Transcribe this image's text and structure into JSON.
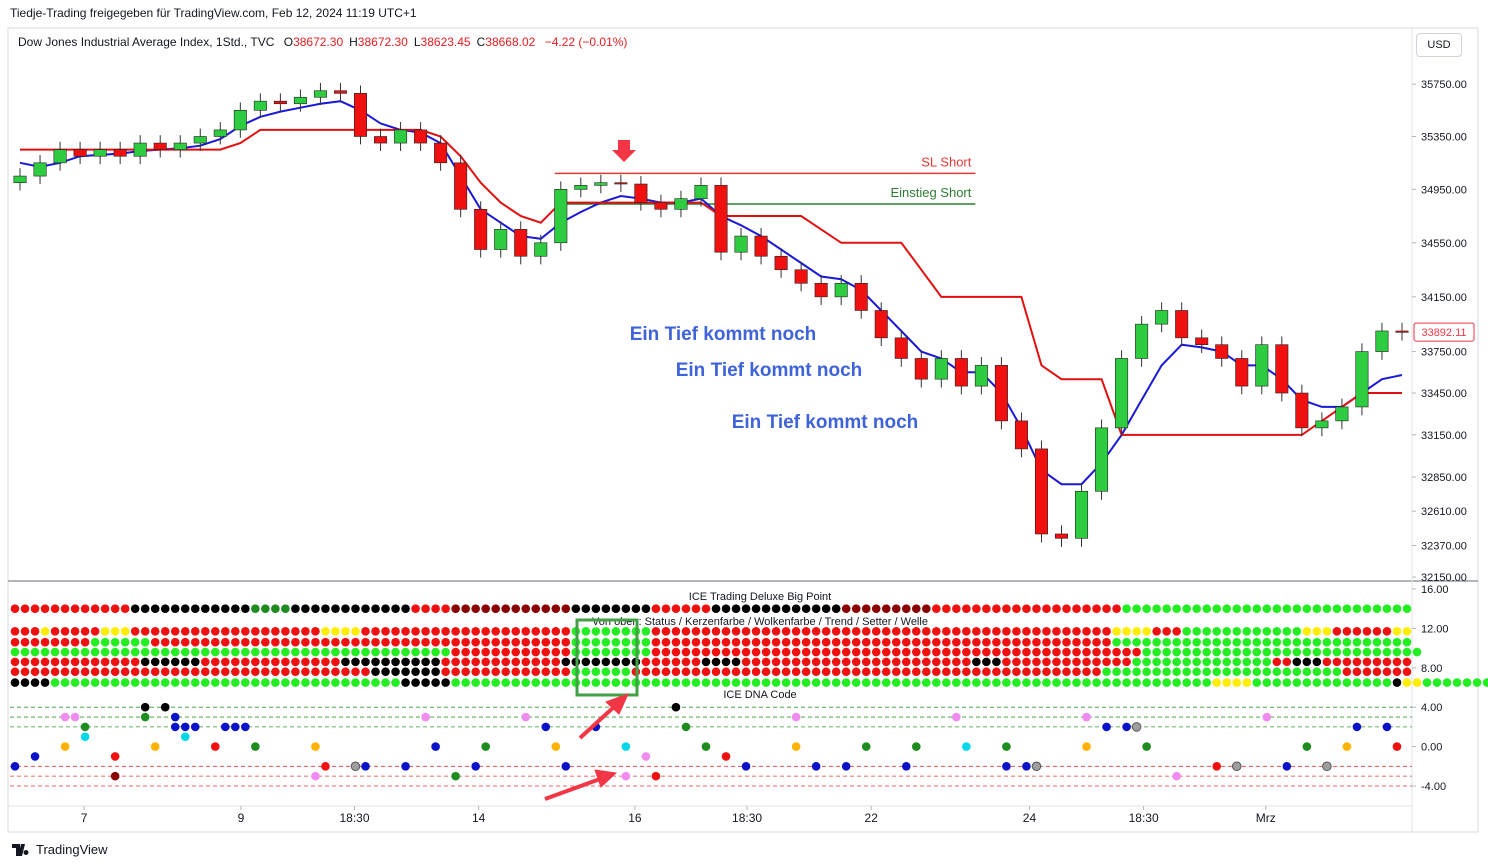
{
  "header": {
    "title": "Tiedje-Trading freigegeben für TradingView.com, Feb 12, 2024 11:19 UTC+1"
  },
  "legend": {
    "symbol": "Dow Jones Industrial Average Index, 1Std., TVC",
    "fields": [
      {
        "key": "O",
        "value": "38672.30"
      },
      {
        "key": "H",
        "value": "38672.30"
      },
      {
        "key": "L",
        "value": "38623.45"
      },
      {
        "key": "C",
        "value": "38668.02"
      }
    ],
    "change": "−4.22 (−0.01%)"
  },
  "currency": "USD",
  "footer": {
    "brand": "TradingView"
  },
  "chart_data": [
    {
      "type": "candlestick",
      "log_scale": true,
      "ylim": [
        32130,
        36170
      ],
      "yticks": [
        {
          "value": 35750,
          "label": "35750.00"
        },
        {
          "value": 35350,
          "label": "35350.00"
        },
        {
          "value": 34950,
          "label": "34950.00"
        },
        {
          "value": 34550,
          "label": "34550.00"
        },
        {
          "value": 34150,
          "label": "34150.00"
        },
        {
          "value": 33750,
          "label": "33750.00"
        },
        {
          "value": 33450,
          "label": "33450.00"
        },
        {
          "value": 33150,
          "label": "33150.00"
        },
        {
          "value": 32850,
          "label": "32850.00"
        },
        {
          "value": 32610,
          "label": "32610.00"
        },
        {
          "value": 32370,
          "label": "32370.00"
        },
        {
          "value": 32150,
          "label": "32150.00"
        }
      ],
      "xlim": [
        -0.5,
        69.5
      ],
      "xticks": [
        {
          "value": 3.2,
          "label": "7"
        },
        {
          "value": 11.03,
          "label": "9"
        },
        {
          "value": 16.7,
          "label": "18:30"
        },
        {
          "value": 22.9,
          "label": "14"
        },
        {
          "value": 30.7,
          "label": "16"
        },
        {
          "value": 36.3,
          "label": "18:30"
        },
        {
          "value": 42.5,
          "label": "22"
        },
        {
          "value": 50.4,
          "label": "24"
        },
        {
          "value": 56.1,
          "label": "18:30"
        },
        {
          "value": 62.2,
          "label": "Mrz"
        }
      ],
      "open": [
        35000,
        35050,
        35150,
        35250,
        35200,
        35250,
        35200,
        35300,
        35250,
        35300,
        35350,
        35400,
        35550,
        35620,
        35600,
        35650,
        35700,
        35680,
        35350,
        35300,
        35400,
        35300,
        35150,
        34800,
        34500,
        34650,
        34450,
        34550,
        34950,
        34980,
        35000,
        34990,
        34850,
        34800,
        34880,
        34980,
        34480,
        34600,
        34450,
        34350,
        34250,
        34150,
        34250,
        34050,
        33850,
        33700,
        33550,
        33700,
        33500,
        33650,
        33250,
        33050,
        32450,
        32420,
        32750,
        33200,
        33700,
        33950,
        34050,
        33850,
        33800,
        33700,
        33500,
        33800,
        33450,
        33200,
        33250,
        33350,
        33750,
        33900
      ],
      "high": [
        35110,
        35210,
        35310,
        35310,
        35310,
        35310,
        35360,
        35360,
        35360,
        35410,
        35460,
        35610,
        35680,
        35680,
        35710,
        35760,
        35760,
        35740,
        35410,
        35460,
        35460,
        35360,
        35210,
        34860,
        34710,
        34710,
        34610,
        35010,
        35040,
        35060,
        35060,
        35050,
        34910,
        34940,
        35040,
        35040,
        34660,
        34660,
        34510,
        34410,
        34310,
        34310,
        34310,
        34110,
        33910,
        33760,
        33760,
        33760,
        33710,
        33710,
        33310,
        33110,
        32510,
        32810,
        33260,
        33760,
        34010,
        34110,
        34110,
        33910,
        33860,
        33760,
        33860,
        33860,
        33510,
        33310,
        33410,
        33810,
        33960,
        33960
      ],
      "low": [
        34940,
        34990,
        35090,
        35140,
        35140,
        35140,
        35140,
        35190,
        35190,
        35240,
        35290,
        35340,
        35490,
        35540,
        35540,
        35590,
        35620,
        35290,
        35240,
        35240,
        35240,
        35090,
        34740,
        34440,
        34440,
        34390,
        34390,
        34490,
        34890,
        34920,
        34930,
        34790,
        34740,
        34740,
        34820,
        34420,
        34420,
        34390,
        34290,
        34190,
        34090,
        34090,
        33990,
        33790,
        33640,
        33490,
        33490,
        33440,
        33440,
        33190,
        32990,
        32390,
        32360,
        32360,
        32690,
        33140,
        33640,
        33890,
        33790,
        33740,
        33640,
        33440,
        33440,
        33390,
        33140,
        33140,
        33190,
        33290,
        33690,
        33830
      ],
      "close": [
        35050,
        35150,
        35250,
        35200,
        35250,
        35200,
        35300,
        35250,
        35300,
        35350,
        35400,
        35550,
        35620,
        35600,
        35650,
        35700,
        35680,
        35350,
        35300,
        35400,
        35300,
        35150,
        34800,
        34500,
        34650,
        34450,
        34550,
        34950,
        34980,
        35000,
        34990,
        34850,
        34800,
        34880,
        34980,
        34480,
        34600,
        34450,
        34350,
        34250,
        34150,
        34250,
        34050,
        33850,
        33700,
        33550,
        33700,
        33500,
        33650,
        33250,
        33050,
        32450,
        32420,
        32750,
        33200,
        33700,
        33950,
        34050,
        33850,
        33800,
        33700,
        33500,
        33800,
        33450,
        33200,
        33250,
        33350,
        33750,
        33900,
        33890
      ],
      "up_color": "#2ecc40",
      "down_color": "#f01010",
      "lines": [
        {
          "color": "#1a1ad6",
          "values": [
            35150,
            35120,
            35150,
            35200,
            35210,
            35220,
            35240,
            35250,
            35260,
            35280,
            35330,
            35430,
            35500,
            35540,
            35570,
            35600,
            35620,
            35550,
            35450,
            35400,
            35380,
            35300,
            35050,
            34800,
            34700,
            34600,
            34580,
            34700,
            34780,
            34850,
            34900,
            34880,
            34850,
            34850,
            34880,
            34750,
            34680,
            34600,
            34500,
            34400,
            34300,
            34280,
            34200,
            34050,
            33900,
            33750,
            33700,
            33600,
            33600,
            33450,
            33200,
            32900,
            32800,
            32800,
            32950,
            33150,
            33400,
            33650,
            33800,
            33780,
            33750,
            33650,
            33650,
            33550,
            33400,
            33350,
            33350,
            33450,
            33550,
            33580
          ]
        },
        {
          "color": "#e01010",
          "values": [
            35250,
            35250,
            35250,
            35250,
            35250,
            35250,
            35250,
            35250,
            35250,
            35250,
            35250,
            35300,
            35400,
            35400,
            35400,
            35400,
            35400,
            35400,
            35400,
            35400,
            35400,
            35350,
            35200,
            35000,
            34850,
            34750,
            34700,
            34850,
            34850,
            34850,
            34850,
            34850,
            34850,
            34850,
            34850,
            34750,
            34750,
            34750,
            34750,
            34750,
            34650,
            34550,
            34550,
            34550,
            34550,
            34350,
            34150,
            34150,
            34150,
            34150,
            34150,
            33650,
            33550,
            33550,
            33550,
            33150,
            33150,
            33150,
            33150,
            33150,
            33150,
            33150,
            33150,
            33150,
            33150,
            33250,
            33350,
            33450,
            33450,
            33450
          ]
        }
      ],
      "levels": [
        {
          "name": "SL Short",
          "value": 35070,
          "color": "#e53935",
          "from": 26.7,
          "to": 47.7
        },
        {
          "name": "Einstieg Short",
          "value": 34840,
          "color": "#2e7d32",
          "from": 26.7,
          "to": 47.7
        }
      ],
      "annotations": [
        "Ein Tief kommt noch",
        "Ein Tief kommt noch",
        "Ein Tief kommt noch"
      ],
      "last_price": 33892.11
    },
    {
      "type": "dot_matrix",
      "title": "ICE Trading Deluxe Big Point",
      "subtitle": "Von oben: Status / Kerzenfarbe / Wolkenfarbe / Trend / Setter / Welle",
      "label": "ICE DNA Code",
      "ylim": [
        -5.93,
        16.71
      ],
      "yticks": [
        {
          "value": 16,
          "label": "16.00"
        },
        {
          "value": 12,
          "label": "12.00"
        },
        {
          "value": 8,
          "label": "8.00"
        },
        {
          "value": 4,
          "label": "4.00"
        },
        {
          "value": 0,
          "label": "0.00"
        },
        {
          "value": -4,
          "label": "-4.00"
        }
      ],
      "xlim": [
        -0.5,
        139.5
      ],
      "palette": {
        "r": "#f01010",
        "k": "#000000",
        "g": "#22ee22",
        "G": "#1e8c1e",
        "d": "#8b0000",
        "y": "#ffee00",
        "b": "#0a12c8",
        "o": "#ffb300",
        "p": "#f08cf0",
        "c": "#00d8e8",
        "s": "#9e9e9e"
      },
      "rows": [
        {
          "value": 14,
          "colors": "rrrrrrrrrrrrkkkkkkkkkkkkGGGGkkkkkkkkkkkkrrrrddddddddddddkkkkkkkkrrrrrrkkkkkkkkkkkkkdddddddddrrrrrrrrrrrrrrrrrrrggggggggggggggggggggggggggggg"
        },
        {
          "value": 11.7,
          "colors": "rrryrrrrryyyrrrrrrrrrrrrrrrrrrryyyyrrrrrrrrrrrrrrrrrrrrrggggggggrrrrrrrrrrrrrrrrrrrrrrrrrrrrrrrrrrrrrrrrrrrrrryyyyrrrggggggggggggyyyrrrrrryy"
        },
        {
          "value": 10.6,
          "colors": "rrrrrrrrggggggrrrrrrrrrrrrrrrrrrrrrrrrrrrrrrrrrrrrrrrrrrggggggggrrrrrrrrrrrrrrrrrrrrrrrrrrrrrrrrrrrrrrrrrrrrrrgggggggggggggggggggggggggggggg"
        },
        {
          "value": 9.6,
          "colors": "ggggggggggggggggggggggggggggggggggggggggggggrrrrrrrrrrrrggggggggrrrrrrrrrrrrrrrrrrrrrrrrrrrrrrrrrrrrrrrrrrrrrrrrrgggggggggggggggggggggggggggg"
        },
        {
          "value": 8.6,
          "colors": "rrrrrrrrrrrrrkkkkkkrrrrrrrrrrrrrrkkkkkkkkkkrrrrrrrrrrrrkkkkkkkkrrrrrrkkkkrrrrrrrrrrrrrrrrrrrrrrrkkkrrrrrrrrrrrrrggggggggggggggrrkkkrrrrrrrrr"
        },
        {
          "value": 7.6,
          "colors": "rrrrrrrrrrrrrrrrrrrrrrrrrrrrrrrrrrrrkkkkkkkrrrrrrrrrrrrrggggggrrrrrrrrrrrrrrrrrrrrrrrrrrrrrrrrrrrrrrrrrrrrrrrggggggggggggggggggggggggrrrrrrr"
        },
        {
          "value": 6.5,
          "colors": "kkkkgggggggggggggggggggggggggggggggggggkkkkkggggggggggggggggggggggggggggggggggggggggggggggggggggggggggggggggggggggggggggyyyyggggggggggggggkyyggggggg"
        }
      ],
      "levels": [
        {
          "value": 4,
          "color": "#2e9d2e"
        },
        {
          "value": 3,
          "color": "#2e9d2e"
        },
        {
          "value": 2,
          "color": "#2e9d2e"
        },
        {
          "value": -2,
          "color": "#e53935"
        },
        {
          "value": -3,
          "color": "#e53935"
        },
        {
          "value": -4,
          "color": "#e53935"
        }
      ],
      "dots": [
        [
          0,
          -2,
          "b"
        ],
        [
          2,
          -1,
          "b"
        ],
        [
          5,
          0,
          "o"
        ],
        [
          5,
          3,
          "p"
        ],
        [
          6,
          3,
          "p"
        ],
        [
          7,
          2,
          "G"
        ],
        [
          7,
          1,
          "c"
        ],
        [
          10,
          -1,
          "r"
        ],
        [
          10,
          -3,
          "d"
        ],
        [
          13,
          4,
          "k"
        ],
        [
          13,
          3,
          "G"
        ],
        [
          14,
          0,
          "o"
        ],
        [
          15,
          4,
          "k"
        ],
        [
          16,
          3,
          "b"
        ],
        [
          16,
          2,
          "b"
        ],
        [
          17,
          2,
          "b"
        ],
        [
          17,
          1,
          "c"
        ],
        [
          18,
          2,
          "b"
        ],
        [
          20,
          0,
          "r"
        ],
        [
          21,
          2,
          "b"
        ],
        [
          22,
          2,
          "b"
        ],
        [
          23,
          2,
          "b"
        ],
        [
          24,
          0,
          "G"
        ],
        [
          30,
          0,
          "o"
        ],
        [
          30,
          -3,
          "p"
        ],
        [
          31,
          -2,
          "r"
        ],
        [
          34,
          -2,
          "s"
        ],
        [
          35,
          -2,
          "b"
        ],
        [
          39,
          -2,
          "b"
        ],
        [
          41,
          3,
          "p"
        ],
        [
          42,
          0,
          "b"
        ],
        [
          44,
          -3,
          "G"
        ],
        [
          46,
          -2,
          "b"
        ],
        [
          47,
          0,
          "G"
        ],
        [
          51,
          3,
          "p"
        ],
        [
          53,
          2,
          "b"
        ],
        [
          54,
          0,
          "o"
        ],
        [
          55,
          -2,
          "b"
        ],
        [
          58,
          2,
          "b"
        ],
        [
          61,
          0,
          "c"
        ],
        [
          61,
          -3,
          "p"
        ],
        [
          63,
          -1,
          "p"
        ],
        [
          64,
          -3,
          "r"
        ],
        [
          66,
          4,
          "k"
        ],
        [
          67,
          2,
          "G"
        ],
        [
          69,
          0,
          "G"
        ],
        [
          71,
          -1,
          "r"
        ],
        [
          73,
          -2,
          "b"
        ],
        [
          78,
          3,
          "p"
        ],
        [
          78,
          0,
          "o"
        ],
        [
          80,
          -2,
          "b"
        ],
        [
          83,
          -2,
          "b"
        ],
        [
          85,
          0,
          "G"
        ],
        [
          89,
          -2,
          "b"
        ],
        [
          90,
          0,
          "G"
        ],
        [
          94,
          3,
          "p"
        ],
        [
          95,
          0,
          "c"
        ],
        [
          99,
          -2,
          "b"
        ],
        [
          99,
          0,
          "G"
        ],
        [
          101,
          -2,
          "b"
        ],
        [
          102,
          -2,
          "s"
        ],
        [
          107,
          3,
          "p"
        ],
        [
          107,
          0,
          "o"
        ],
        [
          109,
          2,
          "b"
        ],
        [
          111,
          2,
          "b"
        ],
        [
          112,
          2,
          "s"
        ],
        [
          113,
          0,
          "G"
        ],
        [
          116,
          -3,
          "p"
        ],
        [
          120,
          -2,
          "r"
        ],
        [
          122,
          -2,
          "s"
        ],
        [
          125,
          3,
          "p"
        ],
        [
          127,
          -2,
          "b"
        ],
        [
          129,
          0,
          "G"
        ],
        [
          131,
          -2,
          "s"
        ],
        [
          133,
          0,
          "o"
        ],
        [
          134,
          2,
          "b"
        ],
        [
          137,
          2,
          "b"
        ],
        [
          138,
          0,
          "r"
        ]
      ]
    }
  ]
}
